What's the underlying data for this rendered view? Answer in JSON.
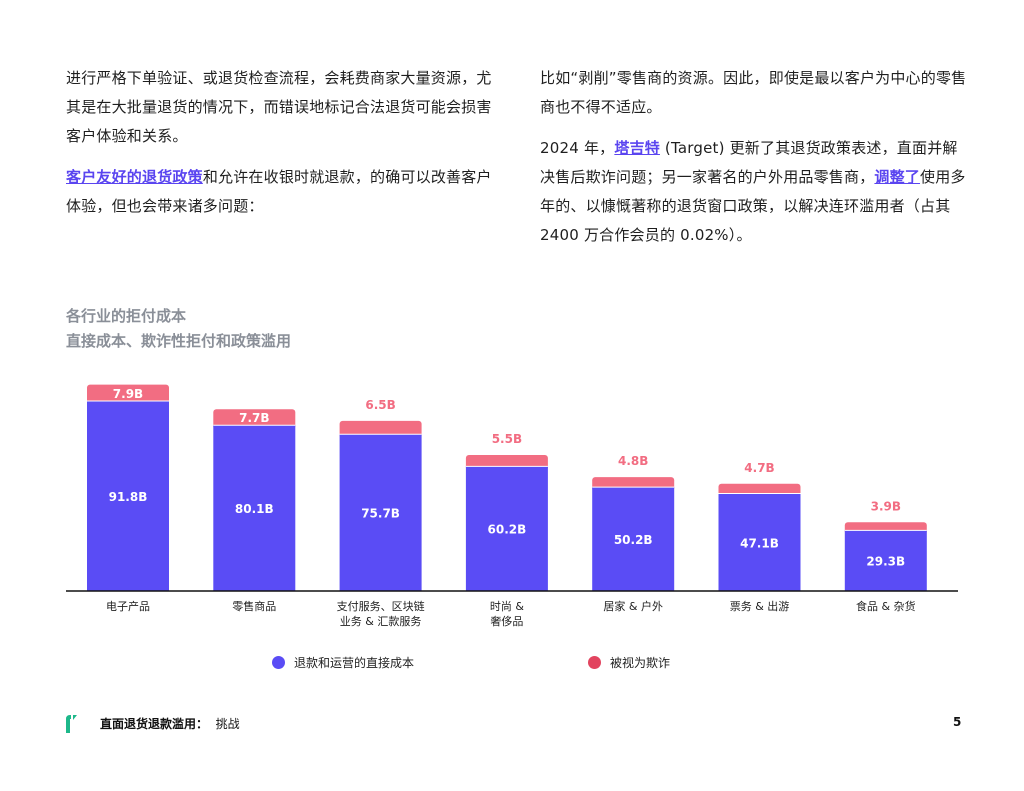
{
  "left_column": {
    "para1": "进行严格下单验证、或退货检查流程，会耗费商家大量资源，尤其是在大批量退货的情况下，而错误地标记合法退货可能会损害客户体验和关系。",
    "para2_link": "客户友好的退货政策",
    "para2_rest": "和允许在收银时就退款，的确可以改善客户体验，但也会带来诸多问题："
  },
  "right_column": {
    "para1": "比如“剥削”零售商的资源。因此，即使是最以客户为中心的零售商也不得不适应。",
    "para2_a": "2024 年，",
    "para2_link1": "塔吉特",
    "para2_b": " (Target) 更新了其退货政策表述，直面并解决售后欺诈问题；另一家著名的户外用品零售商，",
    "para2_link2": "调整了",
    "para2_c": "使用多年的、以慷慨著称的退货窗口政策，以解决连环滥用者（占其 2400 万合作会员的 0.02%）。"
  },
  "chart_title": "各行业的拒付成本",
  "chart_subtitle": "直接成本、欺诈性拒付和政策滥用",
  "chart_data": {
    "type": "bar",
    "stacked": true,
    "categories": [
      "电子产品",
      "零售商品",
      "支付服务、区块链\n业务 & 汇款服务",
      "时尚 &\n奢侈品",
      "居家 & 户外",
      "票务 & 出游",
      "食品 & 杂货"
    ],
    "series": [
      {
        "name": "退款和运营的直接成本",
        "values": [
          91.8,
          80.1,
          75.7,
          60.2,
          50.2,
          47.1,
          29.3
        ],
        "color": "#5a4cf5",
        "labels": [
          "91.8B",
          "80.1B",
          "75.7B",
          "60.2B",
          "50.2B",
          "47.1B",
          "29.3B"
        ]
      },
      {
        "name": "被视为欺诈",
        "values": [
          7.9,
          7.7,
          6.5,
          5.5,
          4.8,
          4.7,
          3.9
        ],
        "color": "#f26d82",
        "labels": [
          "7.9B",
          "7.7B",
          "6.5B",
          "5.5B",
          "4.8B",
          "4.7B",
          "3.9B"
        ]
      }
    ],
    "unit": "B",
    "legend_position": "bottom"
  },
  "legend": {
    "item1": "退款和运营的直接成本",
    "item2": "被视为欺诈",
    "color1": "#5a4cf5",
    "color2": "#e2445f"
  },
  "footer": {
    "title": "直面退货退款滥用：",
    "subtitle": "挑战",
    "page_number": "5"
  }
}
